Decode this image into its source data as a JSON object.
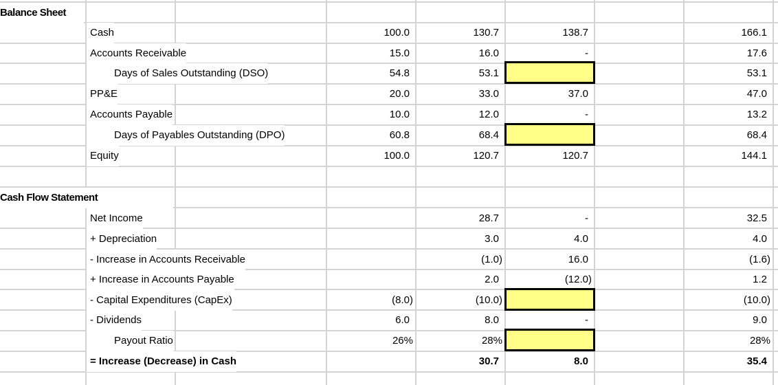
{
  "sheet": {
    "balance_sheet": {
      "title": "Balance Sheet",
      "rows": [
        {
          "label": "Cash",
          "indent": false,
          "c1": "100.0",
          "c2": "130.7",
          "c3": "138.7",
          "c4": "",
          "c5": "166.1"
        },
        {
          "label": "Accounts Receivable",
          "indent": false,
          "c1": "15.0",
          "c2": "16.0",
          "c3": "-",
          "c4": "",
          "c5": "17.6"
        },
        {
          "label": "Days of Sales Outstanding (DSO)",
          "indent": true,
          "c1": "54.8",
          "c2": "53.1",
          "c3": "",
          "c3_highlight": true,
          "c4": "",
          "c5": "53.1"
        },
        {
          "label": "PP&E",
          "indent": false,
          "c1": "20.0",
          "c2": "33.0",
          "c3": "37.0",
          "c4": "",
          "c5": "47.0"
        },
        {
          "label": "Accounts Payable",
          "indent": false,
          "c1": "10.0",
          "c2": "12.0",
          "c3": "-",
          "c4": "",
          "c5": "13.2"
        },
        {
          "label": "Days of Payables Outstanding (DPO)",
          "indent": true,
          "c1": "60.8",
          "c2": "68.4",
          "c3": "",
          "c3_highlight": true,
          "c4": "",
          "c5": "68.4"
        },
        {
          "label": "Equity",
          "indent": false,
          "c1": "100.0",
          "c2": "120.7",
          "c3": "120.7",
          "c4": "",
          "c5": "144.1"
        }
      ]
    },
    "cash_flow": {
      "title": "Cash Flow Statement",
      "rows": [
        {
          "label": "Net Income",
          "indent": false,
          "c1": "",
          "c2": "28.7",
          "c3": "-",
          "c4": "",
          "c5": "32.5"
        },
        {
          "label": "+ Depreciation",
          "indent": false,
          "c1": "",
          "c2": "3.0",
          "c3": "4.0",
          "c4": "",
          "c5": "4.0"
        },
        {
          "label": "- Increase in Accounts Receivable",
          "indent": false,
          "c1": "",
          "c2": "(1.0)",
          "c3": "16.0",
          "c4": "",
          "c5": "(1.6)"
        },
        {
          "label": "+ Increase in Accounts Payable",
          "indent": false,
          "c1": "",
          "c2": "2.0",
          "c3": "(12.0)",
          "c4": "",
          "c5": "1.2"
        },
        {
          "label": "- Capital Expenditures (CapEx)",
          "indent": false,
          "c1": "(8.0)",
          "c2": "(10.0)",
          "c3": "",
          "c3_highlight": true,
          "c4": "",
          "c5": "(10.0)"
        },
        {
          "label": "- Dividends",
          "indent": false,
          "c1": "6.0",
          "c2": "8.0",
          "c3": "-",
          "c4": "",
          "c5": "9.0"
        },
        {
          "label": "Payout Ratio",
          "indent": true,
          "c1": "26%",
          "c2": "28%",
          "c3": "",
          "c3_highlight": true,
          "c4": "",
          "c5": "28%"
        },
        {
          "label": "= Increase (Decrease) in Cash",
          "indent": false,
          "bold": true,
          "c1": "",
          "c2": "30.7",
          "c3": "8.0",
          "c4": "",
          "c5": "35.4"
        }
      ]
    },
    "colors": {
      "gridline": "#d4d4d4",
      "highlight_fill": "#ffff88",
      "highlight_border": "#000000"
    }
  }
}
